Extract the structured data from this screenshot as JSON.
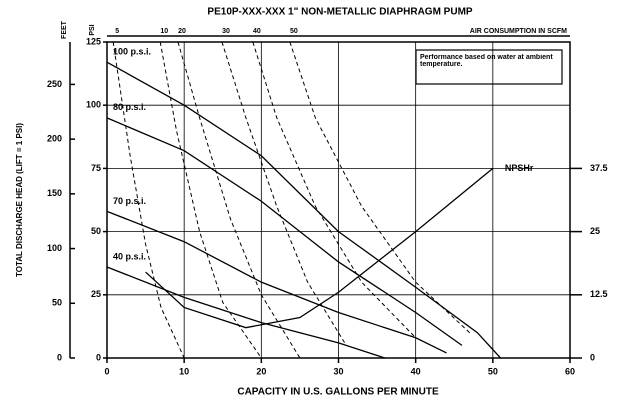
{
  "chart_data": {
    "type": "line",
    "title": "PE10P-XXX-XXX 1\" NON-METALLIC DIAPHRAGM PUMP",
    "x_label": "CAPACITY IN U.S. GALLONS PER MINUTE",
    "y_label": "TOTAL DISCHARGE HEAD (LIFT = 1 PSI)",
    "y_unit": "PSI",
    "y_outer_unit": "FEET",
    "top_axis_label": "AIR CONSUMPTION IN SCFM",
    "y2_label": "NPSHr",
    "annotation": "Performance based on water at ambient temperature.",
    "xlim": [
      0,
      60
    ],
    "xticks": [
      0,
      10,
      20,
      30,
      40,
      50,
      60
    ],
    "ylim": [
      0,
      125
    ],
    "yticks": [
      0,
      25,
      50,
      75,
      100,
      125
    ],
    "y_outer_lim": [
      0,
      288.75
    ],
    "y_outer_ticks": [
      0,
      50,
      100,
      150,
      200,
      250
    ],
    "y2lim": [
      0,
      62.5
    ],
    "y2ticks": [
      0,
      12.5,
      25,
      37.5
    ],
    "grid": true,
    "series": [
      {
        "name": "100 p.s.i.",
        "color": "#000",
        "x": [
          0,
          10,
          20,
          30,
          40,
          48,
          51
        ],
        "values": [
          117,
          100,
          80,
          50,
          28,
          10,
          0
        ]
      },
      {
        "name": "80 p.s.i.",
        "color": "#000",
        "x": [
          0,
          10,
          20,
          30,
          40,
          46
        ],
        "values": [
          95,
          82,
          62,
          38,
          18,
          5
        ]
      },
      {
        "name": "70 p.s.i.",
        "color": "#000",
        "x": [
          0,
          10,
          20,
          30,
          40,
          44
        ],
        "values": [
          58,
          46,
          30,
          18,
          8,
          2
        ]
      },
      {
        "name": "40 p.s.i.",
        "color": "#000",
        "x": [
          0,
          10,
          20,
          30,
          36
        ],
        "values": [
          36,
          24,
          14,
          6,
          0
        ]
      },
      {
        "name": "NPSHr",
        "color": "#000",
        "axis": "y2",
        "x": [
          5,
          10,
          18,
          25,
          30,
          40,
          50
        ],
        "values": [
          17,
          10,
          6,
          8,
          13,
          25,
          37.5
        ]
      }
    ],
    "air_curves": [
      {
        "label": "5",
        "x": [
          0.8,
          3,
          5,
          7,
          10
        ],
        "values": [
          125,
          80,
          45,
          20,
          0
        ]
      },
      {
        "label": "10",
        "x": [
          6.9,
          9,
          12,
          15,
          20
        ],
        "values": [
          125,
          90,
          50,
          22,
          0
        ]
      },
      {
        "label": "20",
        "x": [
          9.2,
          12,
          16,
          20,
          25
        ],
        "values": [
          125,
          95,
          55,
          25,
          0
        ]
      },
      {
        "label": "30",
        "x": [
          14.9,
          18,
          22,
          26,
          31
        ],
        "values": [
          125,
          95,
          60,
          30,
          5
        ]
      },
      {
        "label": "40",
        "x": [
          18.9,
          22,
          27,
          33,
          40
        ],
        "values": [
          125,
          95,
          60,
          30,
          8
        ]
      },
      {
        "label": "50",
        "x": [
          23.7,
          27,
          33,
          40,
          47
        ],
        "values": [
          125,
          95,
          60,
          30,
          10
        ]
      }
    ]
  }
}
